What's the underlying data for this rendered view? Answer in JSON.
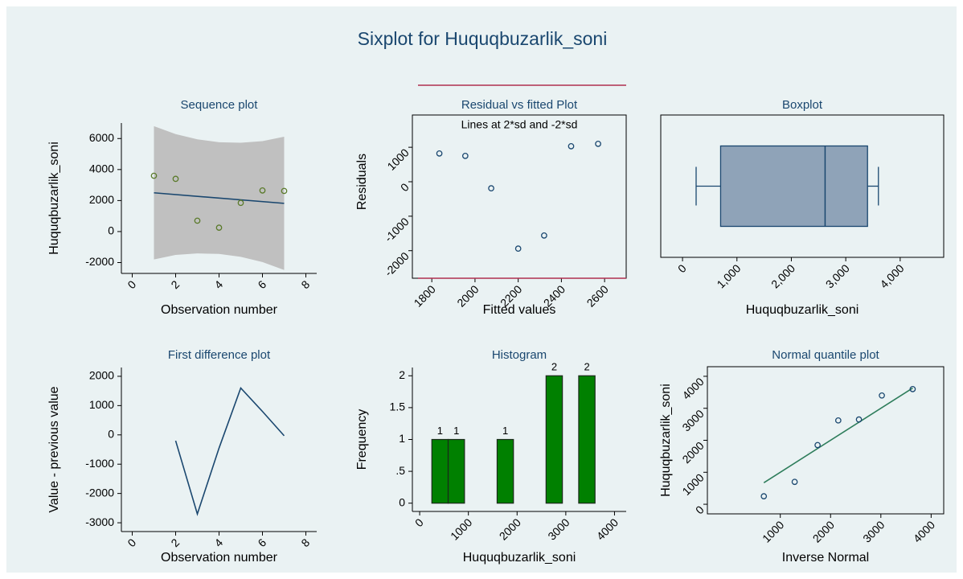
{
  "title": "Sixplot for Huquqbuzarlik_soni",
  "chart_data": [
    {
      "type": "sequence",
      "title": "Sequence plot",
      "x_label": "Observation number",
      "y_label": "Huquqbuzarlik_soni",
      "x": [
        1,
        2,
        3,
        4,
        5,
        6,
        7
      ],
      "values": [
        3600,
        3400,
        700,
        250,
        1850,
        2650,
        2620
      ],
      "point_color": "#5a7a2a",
      "fit": {
        "x": [
          1,
          7
        ],
        "values": [
          2500,
          1820
        ],
        "color": "#1a476f"
      },
      "band": {
        "x": [
          1,
          2,
          3,
          4,
          5,
          6,
          7
        ],
        "upper": [
          6800,
          6290,
          5950,
          5760,
          5730,
          5830,
          6120
        ],
        "lower": [
          -1800,
          -1510,
          -1410,
          -1440,
          -1630,
          -1970,
          -2480
        ],
        "color": "#c0c0c0"
      },
      "xlim": [
        -0.5,
        8.5
      ],
      "xticks": [
        0,
        2,
        4,
        6,
        8
      ],
      "ylim": [
        -2700,
        7000
      ],
      "yticks": [
        -2000,
        0,
        2000,
        4000,
        6000
      ]
    },
    {
      "type": "scatter",
      "title": "Residual vs fitted Plot",
      "subtitle": "Lines at 2*sd and -2*sd",
      "x_label": "Fitted values",
      "y_label": "Residuals",
      "x": [
        1835,
        1955,
        2075,
        2200,
        2320,
        2445,
        2570
      ],
      "values": [
        820,
        750,
        -190,
        -1940,
        -1560,
        1030,
        1100
      ],
      "point_color": "#1a476f",
      "hlines": [
        2800,
        -2800
      ],
      "hline_color": "#b03050",
      "xlim": [
        1710,
        2700
      ],
      "xticks": [
        1800,
        2000,
        2200,
        2400,
        2600
      ],
      "ylim": [
        -2800,
        2800
      ],
      "yticks": [
        -2000,
        -1000,
        0,
        1000
      ]
    },
    {
      "type": "box",
      "title": "Boxplot",
      "x_label": "Huquqbuzarlik_soni",
      "min": 250,
      "q1": 700,
      "median": 2620,
      "q3": 3400,
      "max": 3600,
      "color": "#8fa3b8",
      "line_color": "#1a476f",
      "xlim": [
        -400,
        4800
      ],
      "xticks": [
        0,
        {
          "value": 1000,
          "label": "1,000"
        },
        {
          "value": 2000,
          "label": "2,000"
        },
        {
          "value": 3000,
          "label": "3,000"
        },
        {
          "value": 4000,
          "label": "4,000"
        }
      ]
    },
    {
      "type": "line",
      "title": "First difference plot",
      "x_label": "Observation number",
      "y_label": "Value - previous value",
      "x": [
        1,
        2,
        3,
        4,
        5,
        6,
        7
      ],
      "values": [
        null,
        -200,
        -2700,
        -450,
        1600,
        800,
        -30
      ],
      "color": "#1a476f",
      "xlim": [
        -0.5,
        8.5
      ],
      "xticks": [
        0,
        2,
        4,
        6,
        8
      ],
      "ylim": [
        -3300,
        2300
      ],
      "yticks": [
        -3000,
        -2000,
        -1000,
        0,
        1000,
        2000
      ]
    },
    {
      "type": "histogram",
      "title": "Histogram",
      "x_label": "Huquqbuzarlik_soni",
      "y_label": "Frequency",
      "bins": [
        250,
        585,
        920,
        1255,
        1590,
        1925,
        2260,
        2595,
        2930,
        3265,
        3600
      ],
      "counts": [
        1,
        1,
        0,
        0,
        1,
        0,
        0,
        2,
        0,
        2
      ],
      "color": "#008000",
      "xlim": [
        -150,
        4240
      ],
      "xticks": [
        0,
        1000,
        2000,
        3000,
        4000
      ],
      "ylim": [
        -0.13,
        2.13
      ],
      "yticks": [
        0,
        {
          "value": 0.5,
          "label": ".5"
        },
        1,
        1.5,
        2
      ]
    },
    {
      "type": "qnorm",
      "title": "Normal quantile plot",
      "x_label": "Inverse Normal",
      "y_label": "Huquqbuzarlik_soni",
      "x": [
        673,
        1286,
        1742,
        2153,
        2564,
        3020,
        3633
      ],
      "values": [
        250,
        700,
        1850,
        2620,
        2650,
        3400,
        3600
      ],
      "point_color": "#1a476f",
      "fit": {
        "x": [
          673,
          3633
        ],
        "values": [
          673,
          3633
        ],
        "color": "#2e7d5b"
      },
      "xlim": [
        -450,
        4250
      ],
      "xticks": [
        1000,
        2000,
        3000,
        4000
      ],
      "ylim": [
        -300,
        4300
      ],
      "yticks": [
        0,
        1000,
        2000,
        3000,
        4000
      ]
    }
  ]
}
